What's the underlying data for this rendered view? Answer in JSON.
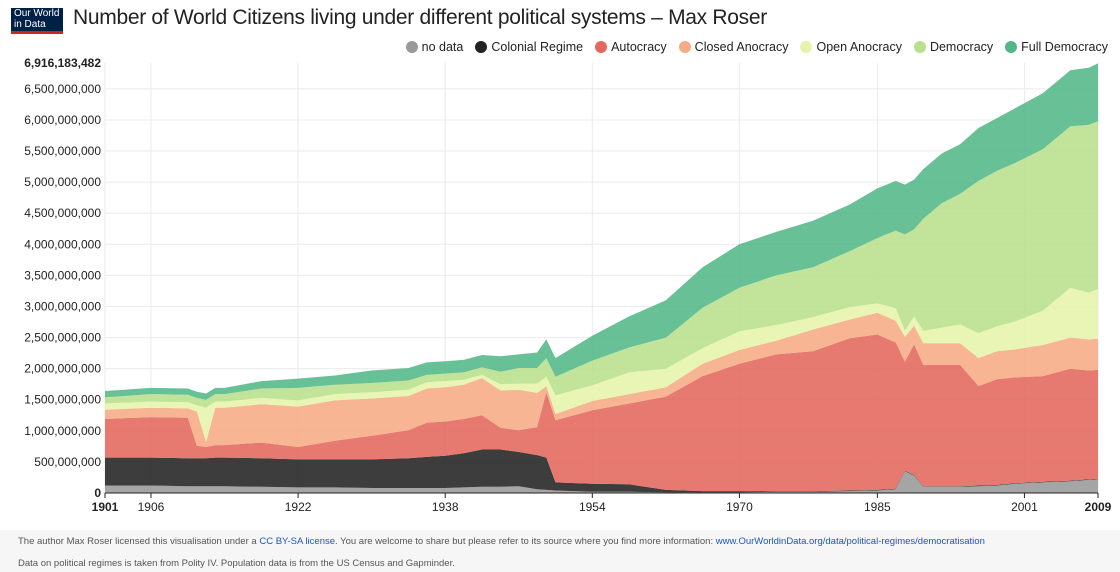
{
  "header": {
    "logo_line1": "Our World",
    "logo_line2": "in Data",
    "title": "Number of World Citizens living under different political systems – Max Roser"
  },
  "footer": {
    "license_pre": "The author Max Roser licensed this visualisation under a ",
    "license_link": "CC BY-SA license",
    "license_post": ". You are welcome to share but please refer to its source where you find more information: ",
    "source_link": "www.OurWorldinData.org/data/political-regimes/democratisation",
    "data_note": "Data on political regimes is taken from Polity IV. Population data is from the US Census and Gapminder."
  },
  "chart_data": {
    "type": "area",
    "stacked": true,
    "title": "Number of World Citizens living under different political systems – Max Roser",
    "legend_position": "top-right",
    "ylim": [
      0,
      6916183482
    ],
    "y_ticks": [
      "0",
      "500,000,000",
      "1,000,000,000",
      "1,500,000,000",
      "2,000,000,000",
      "2,500,000,000",
      "3,000,000,000",
      "3,500,000,000",
      "4,000,000,000",
      "4,500,000,000",
      "5,000,000,000",
      "5,500,000,000",
      "6,000,000,000",
      "6,500,000,000",
      "6,916,183,482"
    ],
    "x_ticks": [
      "1901",
      "1906",
      "1922",
      "1938",
      "1954",
      "1970",
      "1985",
      "2001",
      "2009"
    ],
    "x": [
      1901,
      1906,
      1910,
      1911,
      1912,
      1913,
      1914,
      1918,
      1922,
      1926,
      1930,
      1934,
      1936,
      1938,
      1940,
      1942,
      1944,
      1946,
      1948,
      1949,
      1950,
      1954,
      1958,
      1962,
      1966,
      1970,
      1974,
      1978,
      1982,
      1985,
      1987,
      1988,
      1989,
      1990,
      1992,
      1994,
      1996,
      1998,
      2000,
      2003,
      2006,
      2008,
      2009
    ],
    "series": [
      {
        "name": "no data",
        "color": "#999999",
        "values": [
          0.12,
          0.12,
          0.11,
          0.11,
          0.11,
          0.11,
          0.11,
          0.1,
          0.09,
          0.09,
          0.08,
          0.08,
          0.08,
          0.08,
          0.09,
          0.1,
          0.1,
          0.11,
          0.06,
          0.05,
          0.04,
          0.02,
          0.02,
          0.01,
          0.01,
          0.01,
          0.02,
          0.02,
          0.03,
          0.04,
          0.06,
          0.35,
          0.28,
          0.1,
          0.1,
          0.1,
          0.11,
          0.12,
          0.15,
          0.17,
          0.19,
          0.21,
          0.22
        ]
      },
      {
        "name": "Colonial Regime",
        "color": "#222222",
        "values": [
          0.45,
          0.45,
          0.45,
          0.45,
          0.45,
          0.46,
          0.46,
          0.46,
          0.45,
          0.45,
          0.46,
          0.48,
          0.5,
          0.52,
          0.55,
          0.6,
          0.6,
          0.55,
          0.55,
          0.52,
          0.13,
          0.13,
          0.12,
          0.04,
          0.02,
          0.02,
          0.01,
          0.01,
          0.01,
          0.01,
          0.01,
          0.01,
          0.01,
          0.01,
          0.01,
          0.01,
          0.01,
          0.01,
          0.01,
          0.01,
          0.01,
          0.01,
          0.01
        ]
      },
      {
        "name": "Autocracy",
        "color": "#e3675c",
        "values": [
          0.62,
          0.65,
          0.65,
          0.2,
          0.18,
          0.2,
          0.2,
          0.25,
          0.2,
          0.3,
          0.38,
          0.45,
          0.55,
          0.55,
          0.55,
          0.55,
          0.35,
          0.35,
          0.45,
          1.05,
          1.0,
          1.18,
          1.3,
          1.5,
          1.85,
          2.05,
          2.2,
          2.25,
          2.45,
          2.5,
          2.35,
          1.75,
          2.1,
          1.95,
          1.95,
          1.95,
          1.6,
          1.7,
          1.7,
          1.7,
          1.8,
          1.75,
          1.75
        ]
      },
      {
        "name": "Closed Anocracy",
        "color": "#f6ab84",
        "values": [
          0.15,
          0.15,
          0.15,
          0.55,
          0.08,
          0.6,
          0.6,
          0.62,
          0.65,
          0.65,
          0.6,
          0.55,
          0.55,
          0.55,
          0.55,
          0.6,
          0.6,
          0.65,
          0.55,
          0.1,
          0.1,
          0.15,
          0.15,
          0.15,
          0.2,
          0.22,
          0.22,
          0.35,
          0.3,
          0.35,
          0.35,
          0.4,
          0.3,
          0.35,
          0.35,
          0.35,
          0.45,
          0.45,
          0.45,
          0.5,
          0.5,
          0.5,
          0.5
        ]
      },
      {
        "name": "Open Anocracy",
        "color": "#e6f4ab",
        "values": [
          0.1,
          0.1,
          0.1,
          0.1,
          0.55,
          0.1,
          0.1,
          0.1,
          0.1,
          0.1,
          0.1,
          0.1,
          0.1,
          0.1,
          0.08,
          0.05,
          0.1,
          0.1,
          0.15,
          0.15,
          0.3,
          0.25,
          0.35,
          0.3,
          0.25,
          0.3,
          0.25,
          0.2,
          0.2,
          0.15,
          0.2,
          0.1,
          0.15,
          0.2,
          0.25,
          0.3,
          0.4,
          0.4,
          0.45,
          0.55,
          0.8,
          0.75,
          0.8
        ]
      },
      {
        "name": "Democracy",
        "color": "#b9e08c",
        "values": [
          0.1,
          0.12,
          0.12,
          0.12,
          0.13,
          0.12,
          0.12,
          0.15,
          0.2,
          0.15,
          0.15,
          0.15,
          0.12,
          0.12,
          0.12,
          0.12,
          0.2,
          0.25,
          0.25,
          0.3,
          0.3,
          0.4,
          0.4,
          0.5,
          0.65,
          0.7,
          0.8,
          0.8,
          0.9,
          1.05,
          1.25,
          1.55,
          1.4,
          1.8,
          2.0,
          2.1,
          2.45,
          2.5,
          2.55,
          2.6,
          2.6,
          2.7,
          2.7
        ]
      },
      {
        "name": "Full Democracy",
        "color": "#52b787",
        "values": [
          0.1,
          0.1,
          0.1,
          0.1,
          0.1,
          0.1,
          0.1,
          0.12,
          0.15,
          0.15,
          0.2,
          0.2,
          0.2,
          0.2,
          0.2,
          0.2,
          0.25,
          0.22,
          0.25,
          0.3,
          0.3,
          0.4,
          0.5,
          0.6,
          0.65,
          0.7,
          0.7,
          0.75,
          0.75,
          0.8,
          0.8,
          0.8,
          0.8,
          0.8,
          0.8,
          0.8,
          0.85,
          0.85,
          0.88,
          0.9,
          0.9,
          0.92,
          0.93
        ]
      }
    ],
    "value_unit_note": "values in billions of people"
  }
}
